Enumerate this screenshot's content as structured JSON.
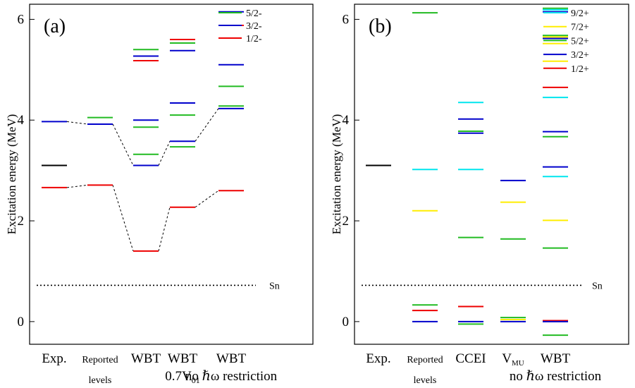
{
  "chart_data": [
    {
      "type": "level-scheme",
      "panel_label": "(a)",
      "ylabel": "Excitation energy (MeV)",
      "ylim": [
        -0.45,
        6.3
      ],
      "yticks": [
        0,
        2,
        4,
        6
      ],
      "categories": [
        {
          "lines": [
            "Exp."
          ],
          "small": false
        },
        {
          "lines": [
            "Reported",
            "levels"
          ],
          "small": true
        },
        {
          "lines": [
            "WBT"
          ],
          "small": false
        },
        {
          "lines": [
            "WBT",
            "0.7V01"
          ],
          "small": false
        },
        {
          "lines": [
            "WBT",
            "no ℏω restriction"
          ],
          "small": false
        }
      ],
      "legend": [
        {
          "label": "5/2-",
          "color": "#22bb22"
        },
        {
          "label": "3/2-",
          "color": "#0000cc"
        },
        {
          "label": "1/2-",
          "color": "#ee0000"
        }
      ],
      "threshold": {
        "label": "Sn",
        "energy": 0.72
      },
      "levels": [
        {
          "col": 0,
          "energy": 3.97,
          "color": "#0000cc"
        },
        {
          "col": 0,
          "energy": 3.1,
          "color": "#000000"
        },
        {
          "col": 0,
          "energy": 2.66,
          "color": "#ee0000"
        },
        {
          "col": 1,
          "energy": 4.05,
          "color": "#22bb22"
        },
        {
          "col": 1,
          "energy": 3.92,
          "color": "#0000cc"
        },
        {
          "col": 1,
          "energy": 2.71,
          "color": "#ee0000"
        },
        {
          "col": 2,
          "energy": 5.4,
          "color": "#22bb22"
        },
        {
          "col": 2,
          "energy": 5.27,
          "color": "#0000cc"
        },
        {
          "col": 2,
          "energy": 5.18,
          "color": "#ee0000"
        },
        {
          "col": 2,
          "energy": 4.0,
          "color": "#0000cc"
        },
        {
          "col": 2,
          "energy": 3.86,
          "color": "#22bb22"
        },
        {
          "col": 2,
          "energy": 3.32,
          "color": "#22bb22"
        },
        {
          "col": 2,
          "energy": 3.1,
          "color": "#0000cc"
        },
        {
          "col": 2,
          "energy": 1.4,
          "color": "#ee0000"
        },
        {
          "col": 3,
          "energy": 5.6,
          "color": "#ee0000"
        },
        {
          "col": 3,
          "energy": 5.53,
          "color": "#22bb22"
        },
        {
          "col": 3,
          "energy": 5.38,
          "color": "#0000cc"
        },
        {
          "col": 3,
          "energy": 4.34,
          "color": "#0000cc"
        },
        {
          "col": 3,
          "energy": 4.1,
          "color": "#22bb22"
        },
        {
          "col": 3,
          "energy": 3.58,
          "color": "#0000cc"
        },
        {
          "col": 3,
          "energy": 3.47,
          "color": "#22bb22"
        },
        {
          "col": 3,
          "energy": 2.27,
          "color": "#ee0000"
        },
        {
          "col": 4,
          "energy": 6.15,
          "color": "#0000cc"
        },
        {
          "col": 4,
          "energy": 5.88,
          "color": "#ee0000"
        },
        {
          "col": 4,
          "energy": 5.1,
          "color": "#0000cc"
        },
        {
          "col": 4,
          "energy": 4.67,
          "color": "#22bb22"
        },
        {
          "col": 4,
          "energy": 4.28,
          "color": "#22bb22"
        },
        {
          "col": 4,
          "energy": 4.23,
          "color": "#0000cc"
        },
        {
          "col": 4,
          "energy": 2.6,
          "color": "#ee0000"
        }
      ],
      "connectors": [
        [
          [
            0,
            3.97
          ],
          [
            1,
            3.92
          ],
          [
            2,
            3.1
          ],
          [
            3,
            3.58
          ],
          [
            4,
            4.23
          ]
        ],
        [
          [
            0,
            2.66
          ],
          [
            1,
            2.71
          ],
          [
            2,
            1.4
          ],
          [
            3,
            2.27
          ],
          [
            4,
            2.6
          ]
        ]
      ]
    },
    {
      "type": "level-scheme",
      "panel_label": "(b)",
      "ylabel": "Excitation energy (MeV)",
      "ylim": [
        -0.45,
        6.3
      ],
      "yticks": [
        0,
        2,
        4,
        6
      ],
      "categories": [
        {
          "lines": [
            "Exp."
          ],
          "small": false
        },
        {
          "lines": [
            "Reported",
            "levels"
          ],
          "small": true
        },
        {
          "lines": [
            "CCEI"
          ],
          "small": false
        },
        {
          "lines": [
            "VMU"
          ],
          "small": false
        },
        {
          "lines": [
            "WBT",
            "no ℏω restriction"
          ],
          "small": false
        }
      ],
      "legend": [
        {
          "label": "9/2+",
          "color": "#00e5ee"
        },
        {
          "label": "7/2+",
          "color": "#ffee00"
        },
        {
          "label": "5/2+",
          "color": "#22bb22"
        },
        {
          "label": "3/2+",
          "color": "#0000cc"
        },
        {
          "label": "1/2+",
          "color": "#ee0000"
        }
      ],
      "threshold": {
        "label": "Sn",
        "energy": 0.72
      },
      "levels": [
        {
          "col": 0,
          "energy": 3.1,
          "color": "#000000"
        },
        {
          "col": 1,
          "energy": 6.13,
          "color": "#22bb22"
        },
        {
          "col": 1,
          "energy": 3.02,
          "color": "#00e5ee"
        },
        {
          "col": 1,
          "energy": 2.2,
          "color": "#ffee00"
        },
        {
          "col": 1,
          "energy": 0.33,
          "color": "#22bb22"
        },
        {
          "col": 1,
          "energy": 0.22,
          "color": "#ee0000"
        },
        {
          "col": 1,
          "energy": 0.0,
          "color": "#0000cc"
        },
        {
          "col": 2,
          "energy": 4.35,
          "color": "#00e5ee"
        },
        {
          "col": 2,
          "energy": 4.02,
          "color": "#0000cc"
        },
        {
          "col": 2,
          "energy": 3.78,
          "color": "#22bb22"
        },
        {
          "col": 2,
          "energy": 3.74,
          "color": "#0000cc"
        },
        {
          "col": 2,
          "energy": 3.02,
          "color": "#00e5ee"
        },
        {
          "col": 2,
          "energy": 1.67,
          "color": "#22bb22"
        },
        {
          "col": 2,
          "energy": 0.3,
          "color": "#ee0000"
        },
        {
          "col": 2,
          "energy": 0.0,
          "color": "#0000cc"
        },
        {
          "col": 2,
          "energy": -0.05,
          "color": "#22bb22"
        },
        {
          "col": 3,
          "energy": 2.8,
          "color": "#0000cc"
        },
        {
          "col": 3,
          "energy": 2.37,
          "color": "#ffee00"
        },
        {
          "col": 3,
          "energy": 1.64,
          "color": "#22bb22"
        },
        {
          "col": 3,
          "energy": 0.08,
          "color": "#22bb22"
        },
        {
          "col": 3,
          "energy": 0.04,
          "color": "#ffee00"
        },
        {
          "col": 3,
          "energy": 0.0,
          "color": "#0000cc"
        },
        {
          "col": 4,
          "energy": 6.22,
          "color": "#22bb22"
        },
        {
          "col": 4,
          "energy": 6.19,
          "color": "#00e5ee"
        },
        {
          "col": 4,
          "energy": 6.15,
          "color": "#0000cc"
        },
        {
          "col": 4,
          "energy": 5.68,
          "color": "#22bb22"
        },
        {
          "col": 4,
          "energy": 5.65,
          "color": "#ffee00"
        },
        {
          "col": 4,
          "energy": 5.62,
          "color": "#0000cc"
        },
        {
          "col": 4,
          "energy": 5.52,
          "color": "#ffee00"
        },
        {
          "col": 4,
          "energy": 5.17,
          "color": "#ffee00"
        },
        {
          "col": 4,
          "energy": 4.65,
          "color": "#ee0000"
        },
        {
          "col": 4,
          "energy": 4.45,
          "color": "#00e5ee"
        },
        {
          "col": 4,
          "energy": 3.77,
          "color": "#0000cc"
        },
        {
          "col": 4,
          "energy": 3.67,
          "color": "#22bb22"
        },
        {
          "col": 4,
          "energy": 3.07,
          "color": "#0000cc"
        },
        {
          "col": 4,
          "energy": 2.88,
          "color": "#00e5ee"
        },
        {
          "col": 4,
          "energy": 2.01,
          "color": "#ffee00"
        },
        {
          "col": 4,
          "energy": 1.46,
          "color": "#22bb22"
        },
        {
          "col": 4,
          "energy": 0.02,
          "color": "#ee0000"
        },
        {
          "col": 4,
          "energy": 0.0,
          "color": "#0000cc"
        },
        {
          "col": 4,
          "energy": -0.27,
          "color": "#22bb22"
        }
      ],
      "connectors": []
    }
  ]
}
